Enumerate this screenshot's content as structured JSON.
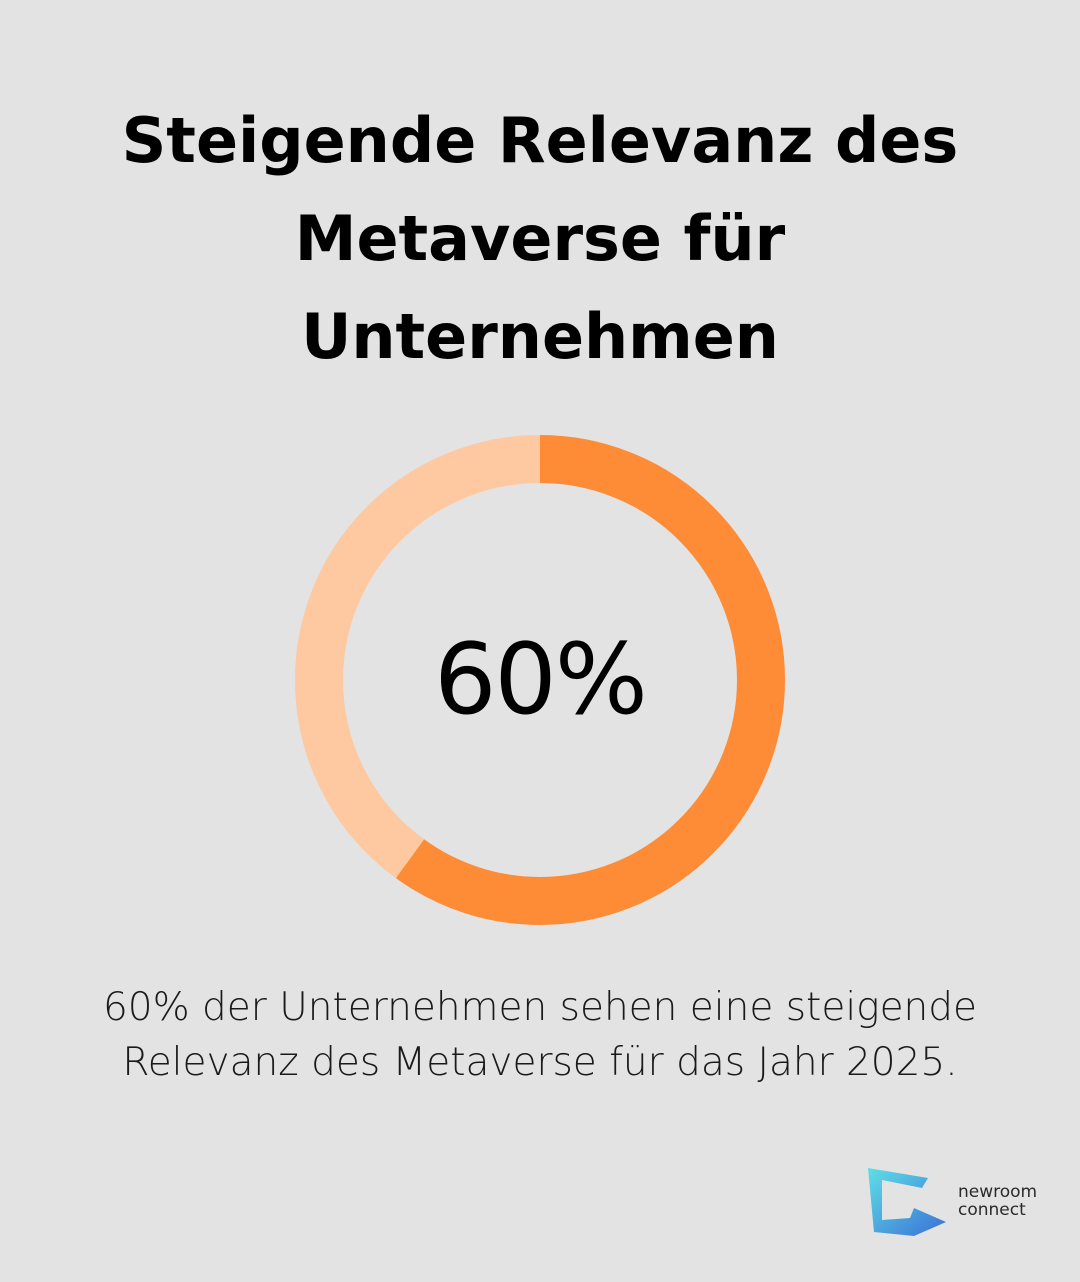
{
  "title": "Steigende Relevanz des Metaverse für Unternehmen",
  "chart_data": {
    "type": "donut",
    "value_label": "60%",
    "values": [
      {
        "value": 60,
        "color": "#fe8b35"
      },
      {
        "value": 40,
        "color": "#fec8a0"
      }
    ]
  },
  "caption": "60% der Unternehmen sehen eine steigende Relevanz des Metaverse für das Jahr 2025.",
  "logo": {
    "line1": "newroom",
    "line2": "connect",
    "colors": [
      "#5ee0e6",
      "#3b6fd6"
    ]
  }
}
